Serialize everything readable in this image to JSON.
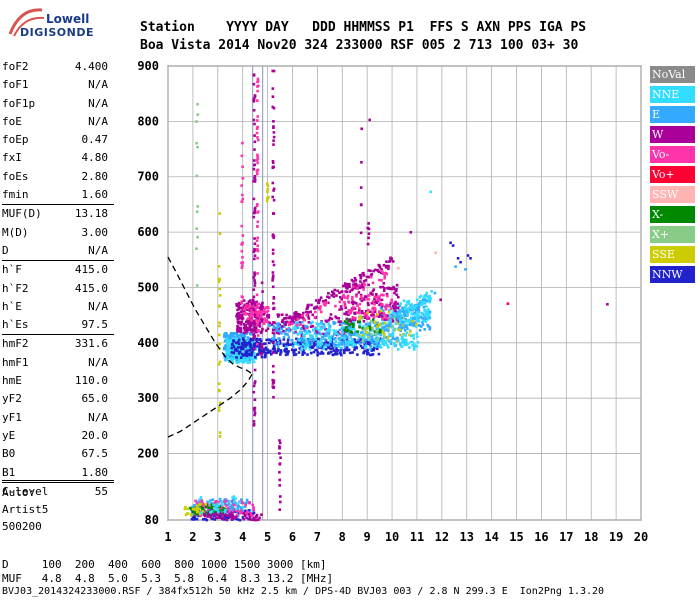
{
  "logo": {
    "line1": "Lowell",
    "line2": "DIGISONDE"
  },
  "header": {
    "row1": "Station    YYYY DAY   DDD HHMMSS P1  FFS S AXN PPS IGA PS",
    "row2": "Boa Vista 2014 Nov20 324 233000 RSF 005 2 713 100 03+ 30"
  },
  "params": [
    {
      "label": "foF2",
      "value": "4.400"
    },
    {
      "label": "foF1",
      "value": "N/A"
    },
    {
      "label": "foF1p",
      "value": "N/A"
    },
    {
      "label": "foE",
      "value": "N/A"
    },
    {
      "label": "foEp",
      "value": "0.47"
    },
    {
      "label": "fxI",
      "value": "4.80"
    },
    {
      "label": "foEs",
      "value": "2.80"
    },
    {
      "label": "fmin",
      "value": "1.60"
    },
    {
      "label": "MUF(D)",
      "value": "13.18",
      "sep": true
    },
    {
      "label": "M(D)",
      "value": "3.00"
    },
    {
      "label": "D",
      "value": "N/A"
    },
    {
      "label": "h`F",
      "value": "415.0",
      "sep": true
    },
    {
      "label": "h`F2",
      "value": "415.0"
    },
    {
      "label": "h`E",
      "value": "N/A"
    },
    {
      "label": "h`Es",
      "value": "97.5"
    },
    {
      "label": "hmF2",
      "value": "331.6",
      "sep": true
    },
    {
      "label": "hmF1",
      "value": "N/A"
    },
    {
      "label": "hmE",
      "value": "110.0"
    },
    {
      "label": "yF2",
      "value": "65.0"
    },
    {
      "label": "yF1",
      "value": "N/A"
    },
    {
      "label": "yE",
      "value": "20.0"
    },
    {
      "label": "B0",
      "value": "67.5"
    },
    {
      "label": "B1",
      "value": "1.80"
    },
    {
      "label": "C-level",
      "value": "55",
      "sep": true
    }
  ],
  "auto": {
    "line1": "Auto:",
    "line2": "Artist5",
    "line3": "500200"
  },
  "legend": [
    {
      "label": "NoVal",
      "color": "#8a8a8a"
    },
    {
      "label": "NNE",
      "color": "#33ddff"
    },
    {
      "label": "E",
      "color": "#33aaff"
    },
    {
      "label": "W",
      "color": "#aa0099"
    },
    {
      "label": "Vo-",
      "color": "#ff33aa"
    },
    {
      "label": "Vo+",
      "color": "#ff0033"
    },
    {
      "label": "SSW",
      "color": "#ffb3b3"
    },
    {
      "label": "X-",
      "color": "#008800"
    },
    {
      "label": "X+",
      "color": "#88cc88"
    },
    {
      "label": "SSE",
      "color": "#cccc00"
    },
    {
      "label": "NNW",
      "color": "#2222cc"
    }
  ],
  "footer": {
    "line1": "D     100  200  400  600  800 1000 1500 3000 [km]",
    "line2": "MUF   4.8  4.8  5.0  5.3  5.8  6.4  8.3 13.2 [MHz]",
    "line3": "BVJ03_2014324233000.RSF / 384fx512h 50 kHz 2.5 km / DPS-4D BVJ03 003 / 2.8 N 299.3 E  Ion2Png 1.3.20"
  },
  "chart_data": {
    "type": "scatter",
    "xlim": [
      1,
      20
    ],
    "ylim": [
      80,
      900
    ],
    "xticks": [
      "1",
      "2",
      "3",
      "4",
      "5",
      "6",
      "7",
      "8",
      "9",
      "10",
      "11",
      "12",
      "13",
      "14",
      "15",
      "16",
      "17",
      "18",
      "19",
      "20"
    ],
    "yticks": [
      "80",
      "200",
      "300",
      "400",
      "500",
      "600",
      "700",
      "800",
      "900"
    ],
    "ytick_values": [
      80,
      200,
      300,
      400,
      500,
      600,
      700,
      800,
      900
    ],
    "grid": true,
    "vlines": [
      4.4,
      4.8
    ],
    "profile_line": {
      "style": "dashed",
      "x": [
        1.0,
        1.3,
        1.7,
        2.1,
        2.5,
        2.9,
        3.3,
        3.6,
        3.9,
        4.1,
        4.25,
        4.35
      ],
      "y": [
        555,
        530,
        495,
        460,
        430,
        400,
        375,
        362,
        355,
        352,
        348,
        345
      ]
    },
    "bottomside_line": {
      "style": "dashed",
      "x": [
        1.0,
        1.5,
        2.0,
        2.5,
        3.0,
        3.5,
        3.9,
        4.2,
        4.4
      ],
      "y": [
        230,
        240,
        255,
        270,
        285,
        300,
        315,
        330,
        345
      ]
    },
    "clusters": [
      {
        "series": "E",
        "x": [
          3.2,
          4.3
        ],
        "y": [
          370,
          420
        ],
        "n": 260
      },
      {
        "series": "NNE",
        "x": [
          3.3,
          4.5
        ],
        "y": [
          365,
          410
        ],
        "n": 160
      },
      {
        "series": "NNW",
        "x": [
          3.5,
          5.0
        ],
        "y": [
          375,
          410
        ],
        "n": 120
      },
      {
        "series": "W",
        "x": [
          3.7,
          4.7
        ],
        "y": [
          420,
          480
        ],
        "n": 180
      },
      {
        "series": "Vo-",
        "x": [
          4.0,
          5.0
        ],
        "y": [
          435,
          470
        ],
        "n": 60
      },
      {
        "series": "W",
        "x": [
          4.8,
          8.5
        ],
        "y": [
          415,
          455
        ],
        "n": 120
      },
      {
        "series": "NNW",
        "x": [
          5.0,
          9.5
        ],
        "y": [
          380,
          410
        ],
        "n": 260
      },
      {
        "series": "E",
        "x": [
          5.0,
          10.5
        ],
        "y": [
          395,
          440
        ],
        "n": 260
      },
      {
        "series": "NNE",
        "x": [
          6.0,
          11.0
        ],
        "y": [
          390,
          440
        ],
        "n": 220
      },
      {
        "series": "E",
        "x": [
          9.5,
          11.5
        ],
        "y": [
          425,
          470
        ],
        "n": 120
      },
      {
        "series": "NNE",
        "x": [
          10.0,
          11.5
        ],
        "y": [
          440,
          480
        ],
        "n": 80
      },
      {
        "series": "W",
        "x": [
          7.8,
          10.2
        ],
        "y": [
          440,
          510
        ],
        "n": 140
      },
      {
        "series": "Vo-",
        "x": [
          8.0,
          10.0
        ],
        "y": [
          445,
          490
        ],
        "n": 70
      },
      {
        "series": "X-",
        "x": [
          8.0,
          9.5
        ],
        "y": [
          420,
          445
        ],
        "n": 30
      },
      {
        "series": "X+",
        "x": [
          8.5,
          10.5
        ],
        "y": [
          405,
          450
        ],
        "n": 30
      },
      {
        "series": "SSE",
        "x": [
          8.5,
          11.0
        ],
        "y": [
          410,
          460
        ],
        "n": 25
      },
      {
        "series": "E",
        "x": [
          1.9,
          4.3
        ],
        "y": [
          88,
          120
        ],
        "n": 130
      },
      {
        "series": "NNW",
        "x": [
          1.9,
          4.5
        ],
        "y": [
          82,
          100
        ],
        "n": 70
      },
      {
        "series": "Vo-",
        "x": [
          2.0,
          4.4
        ],
        "y": [
          90,
          118
        ],
        "n": 70
      },
      {
        "series": "X-",
        "x": [
          1.8,
          3.3
        ],
        "y": [
          92,
          110
        ],
        "n": 50
      },
      {
        "series": "W",
        "x": [
          2.4,
          4.8
        ],
        "y": [
          82,
          95
        ],
        "n": 50
      },
      {
        "series": "SSE",
        "x": [
          1.6,
          2.5
        ],
        "y": [
          90,
          112
        ],
        "n": 25
      },
      {
        "series": "NNE",
        "x": [
          2.2,
          4.0
        ],
        "y": [
          95,
          125
        ],
        "n": 30
      }
    ],
    "streaks": [
      {
        "series": "W",
        "x": 4.42,
        "y": [
          250,
          900
        ],
        "n": 70
      },
      {
        "series": "Vo-",
        "x": 4.55,
        "y": [
          380,
          880
        ],
        "n": 50
      },
      {
        "series": "W",
        "x": 5.18,
        "y": [
          300,
          900
        ],
        "n": 60
      },
      {
        "series": "Vo-",
        "x": 3.93,
        "y": [
          430,
          780
        ],
        "n": 25
      },
      {
        "series": "SSE",
        "x": 3.02,
        "y": [
          210,
          660
        ],
        "n": 25
      },
      {
        "series": "W",
        "x": 4.72,
        "y": [
          380,
          520
        ],
        "n": 20
      },
      {
        "series": "W",
        "x": 5.45,
        "y": [
          100,
          250
        ],
        "n": 15
      },
      {
        "series": "X+",
        "x": 2.12,
        "y": [
          450,
          860
        ],
        "n": 12
      },
      {
        "series": "SSE",
        "x": 4.95,
        "y": [
          650,
          720
        ],
        "n": 8
      },
      {
        "series": "W",
        "x": 9.0,
        "y": [
          580,
          620
        ],
        "n": 6
      },
      {
        "series": "W",
        "x": 8.7,
        "y": [
          580,
          800
        ],
        "n": 6
      }
    ],
    "diagonals": [
      {
        "series": "W",
        "x": [
          5.5,
          10.0
        ],
        "y": [
          435,
          550
        ],
        "n": 130
      },
      {
        "series": "Vo-",
        "x": [
          5.8,
          9.8
        ],
        "y": [
          430,
          530
        ],
        "n": 40
      },
      {
        "series": "E",
        "x": [
          9.8,
          11.7
        ],
        "y": [
          440,
          490
        ],
        "n": 45
      },
      {
        "series": "NNE",
        "x": [
          9.8,
          11.7
        ],
        "y": [
          445,
          495
        ],
        "n": 30
      }
    ],
    "points": [
      {
        "series": "NNW",
        "x": 12.3,
        "y": 583
      },
      {
        "series": "NNW",
        "x": 12.4,
        "y": 578
      },
      {
        "series": "NNW",
        "x": 12.6,
        "y": 555
      },
      {
        "series": "NNW",
        "x": 12.7,
        "y": 548
      },
      {
        "series": "E",
        "x": 12.5,
        "y": 540
      },
      {
        "series": "NNW",
        "x": 13.0,
        "y": 560
      },
      {
        "series": "NNW",
        "x": 13.1,
        "y": 555
      },
      {
        "series": "E",
        "x": 12.9,
        "y": 535
      },
      {
        "series": "W",
        "x": 18.6,
        "y": 472
      },
      {
        "series": "Vo+",
        "x": 14.6,
        "y": 473
      },
      {
        "series": "W",
        "x": 10.7,
        "y": 602
      },
      {
        "series": "SSW",
        "x": 11.7,
        "y": 565
      },
      {
        "series": "NNE",
        "x": 11.5,
        "y": 675
      },
      {
        "series": "W",
        "x": 11.9,
        "y": 480
      },
      {
        "series": "SSW",
        "x": 10.2,
        "y": 537
      },
      {
        "series": "W",
        "x": 9.05,
        "y": 805
      }
    ]
  }
}
